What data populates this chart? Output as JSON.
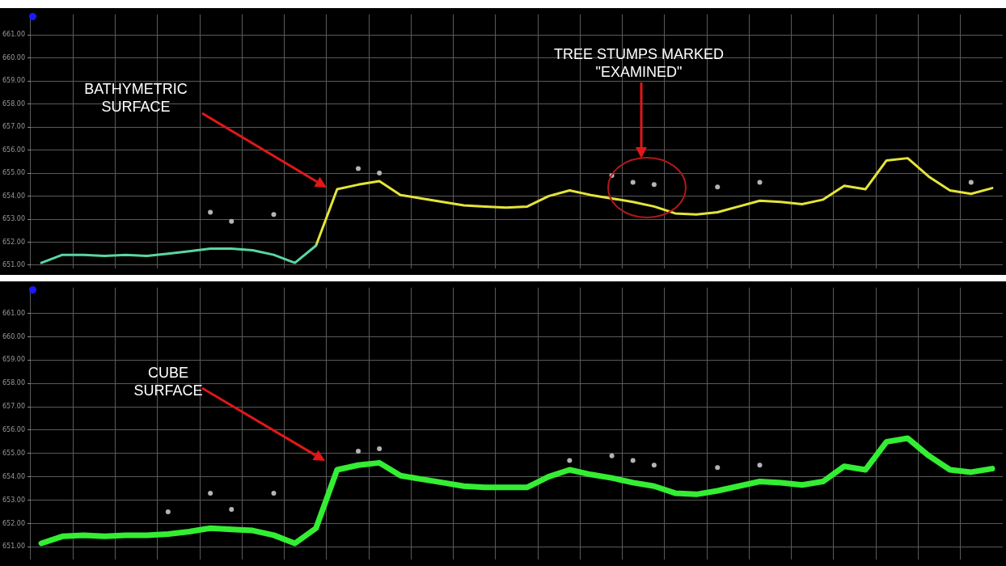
{
  "chart_data": [
    {
      "type": "line",
      "annotations": [
        "BATHYMETRIC\nSURFACE",
        "TREE STUMPS MARKED\n\"EXAMINED\""
      ],
      "categories": [
        null,
        null,
        null,
        null,
        null,
        null,
        null,
        null,
        null,
        null,
        null,
        null,
        null,
        null,
        null,
        null,
        null,
        null,
        null,
        null,
        null,
        null,
        null,
        null,
        null,
        null,
        null,
        null,
        null,
        null,
        null,
        null,
        null,
        null,
        null,
        null,
        null,
        null,
        null,
        null,
        null,
        null,
        null,
        null,
        null,
        null
      ],
      "series": [
        {
          "color": "#5ad6a0",
          "values": [
            651.1,
            651.45,
            651.45,
            651.4,
            651.45,
            651.4,
            651.5,
            651.6,
            651.72,
            651.72,
            651.65,
            651.45,
            651.1,
            651.85,
            null,
            null,
            null,
            null,
            null,
            null,
            null,
            null,
            null,
            null,
            null,
            null,
            null,
            null,
            null,
            null,
            null,
            null,
            null,
            null,
            null,
            null,
            null,
            null,
            null,
            null,
            null,
            null,
            null,
            null,
            null,
            null
          ]
        },
        {
          "color": "#e4e43a",
          "values": [
            null,
            null,
            null,
            null,
            null,
            null,
            null,
            null,
            null,
            null,
            null,
            null,
            null,
            651.85,
            654.3,
            654.5,
            654.65,
            654.05,
            653.9,
            653.75,
            653.6,
            653.55,
            653.5,
            653.55,
            654.0,
            654.25,
            654.05,
            653.9,
            653.75,
            653.55,
            653.25,
            653.2,
            653.3,
            653.55,
            653.8,
            653.75,
            653.65,
            653.85,
            654.45,
            654.3,
            655.55,
            655.65,
            654.85,
            654.25,
            654.1,
            654.35
          ]
        },
        {
          "type": "scatter",
          "marker": "circle",
          "color": "#b4b4b4",
          "values": [
            null,
            null,
            null,
            null,
            null,
            null,
            null,
            null,
            653.3,
            652.9,
            null,
            653.2,
            null,
            null,
            null,
            655.2,
            655.0,
            null,
            null,
            null,
            null,
            null,
            null,
            null,
            null,
            null,
            null,
            654.9,
            654.6,
            654.5,
            null,
            null,
            654.4,
            null,
            654.6,
            null,
            null,
            null,
            null,
            null,
            null,
            null,
            null,
            null,
            654.6,
            null
          ]
        }
      ],
      "ylim": [
        650.85,
        661.9
      ],
      "yticks": [
        {
          "value": 651,
          "label": "651.00"
        },
        {
          "value": 652,
          "label": "652.00"
        },
        {
          "value": 653,
          "label": "653.00"
        },
        {
          "value": 654,
          "label": "654.00"
        },
        {
          "value": 655,
          "label": "655.00"
        },
        {
          "value": 656,
          "label": "656.00"
        },
        {
          "value": 657,
          "label": "657.00"
        },
        {
          "value": 658,
          "label": "658.00"
        },
        {
          "value": 659,
          "label": "659.00"
        },
        {
          "value": 660,
          "label": "660.00"
        },
        {
          "value": 661,
          "label": "661.00"
        }
      ],
      "grid": true,
      "legend": false,
      "marker": "none",
      "tick_labels": "y"
    },
    {
      "type": "line",
      "annotations": [
        "CUBE\nSURFACE"
      ],
      "categories": [
        null,
        null,
        null,
        null,
        null,
        null,
        null,
        null,
        null,
        null,
        null,
        null,
        null,
        null,
        null,
        null,
        null,
        null,
        null,
        null,
        null,
        null,
        null,
        null,
        null,
        null,
        null,
        null,
        null,
        null,
        null,
        null,
        null,
        null,
        null,
        null,
        null,
        null,
        null,
        null,
        null,
        null,
        null,
        null,
        null,
        null
      ],
      "series": [
        {
          "color": "#33ee33",
          "values": [
            651.15,
            651.45,
            651.5,
            651.45,
            651.5,
            651.5,
            651.55,
            651.65,
            651.8,
            651.75,
            651.7,
            651.5,
            651.15,
            651.8,
            654.3,
            654.5,
            654.6,
            654.05,
            653.9,
            653.75,
            653.6,
            653.55,
            653.55,
            653.55,
            654.0,
            654.3,
            654.1,
            653.95,
            653.75,
            653.6,
            653.3,
            653.25,
            653.4,
            653.6,
            653.8,
            653.75,
            653.65,
            653.8,
            654.45,
            654.3,
            655.5,
            655.65,
            654.9,
            654.3,
            654.2,
            654.35
          ]
        },
        {
          "type": "scatter",
          "marker": "circle",
          "color": "#b4b4b4",
          "values": [
            null,
            null,
            null,
            null,
            null,
            null,
            652.5,
            null,
            653.3,
            652.6,
            null,
            653.3,
            null,
            null,
            null,
            655.1,
            655.2,
            null,
            null,
            null,
            null,
            null,
            null,
            null,
            null,
            654.7,
            null,
            654.9,
            654.7,
            654.5,
            null,
            null,
            654.4,
            null,
            654.5,
            null,
            null,
            null,
            null,
            null,
            null,
            null,
            null,
            null,
            null,
            null
          ]
        }
      ],
      "ylim": [
        650.45,
        662.1
      ],
      "yticks": [
        {
          "value": 651,
          "label": "651.00"
        },
        {
          "value": 652,
          "label": "652.00"
        },
        {
          "value": 653,
          "label": "653.00"
        },
        {
          "value": 654,
          "label": "654.00"
        },
        {
          "value": 655,
          "label": "655.00"
        },
        {
          "value": 656,
          "label": "656.00"
        },
        {
          "value": 657,
          "label": "657.00"
        },
        {
          "value": 658,
          "label": "658.00"
        },
        {
          "value": 659,
          "label": "659.00"
        },
        {
          "value": 660,
          "label": "660.00"
        },
        {
          "value": 661,
          "label": "661.00"
        }
      ],
      "grid": true,
      "legend": false,
      "marker": "none",
      "tick_labels": "y"
    }
  ]
}
